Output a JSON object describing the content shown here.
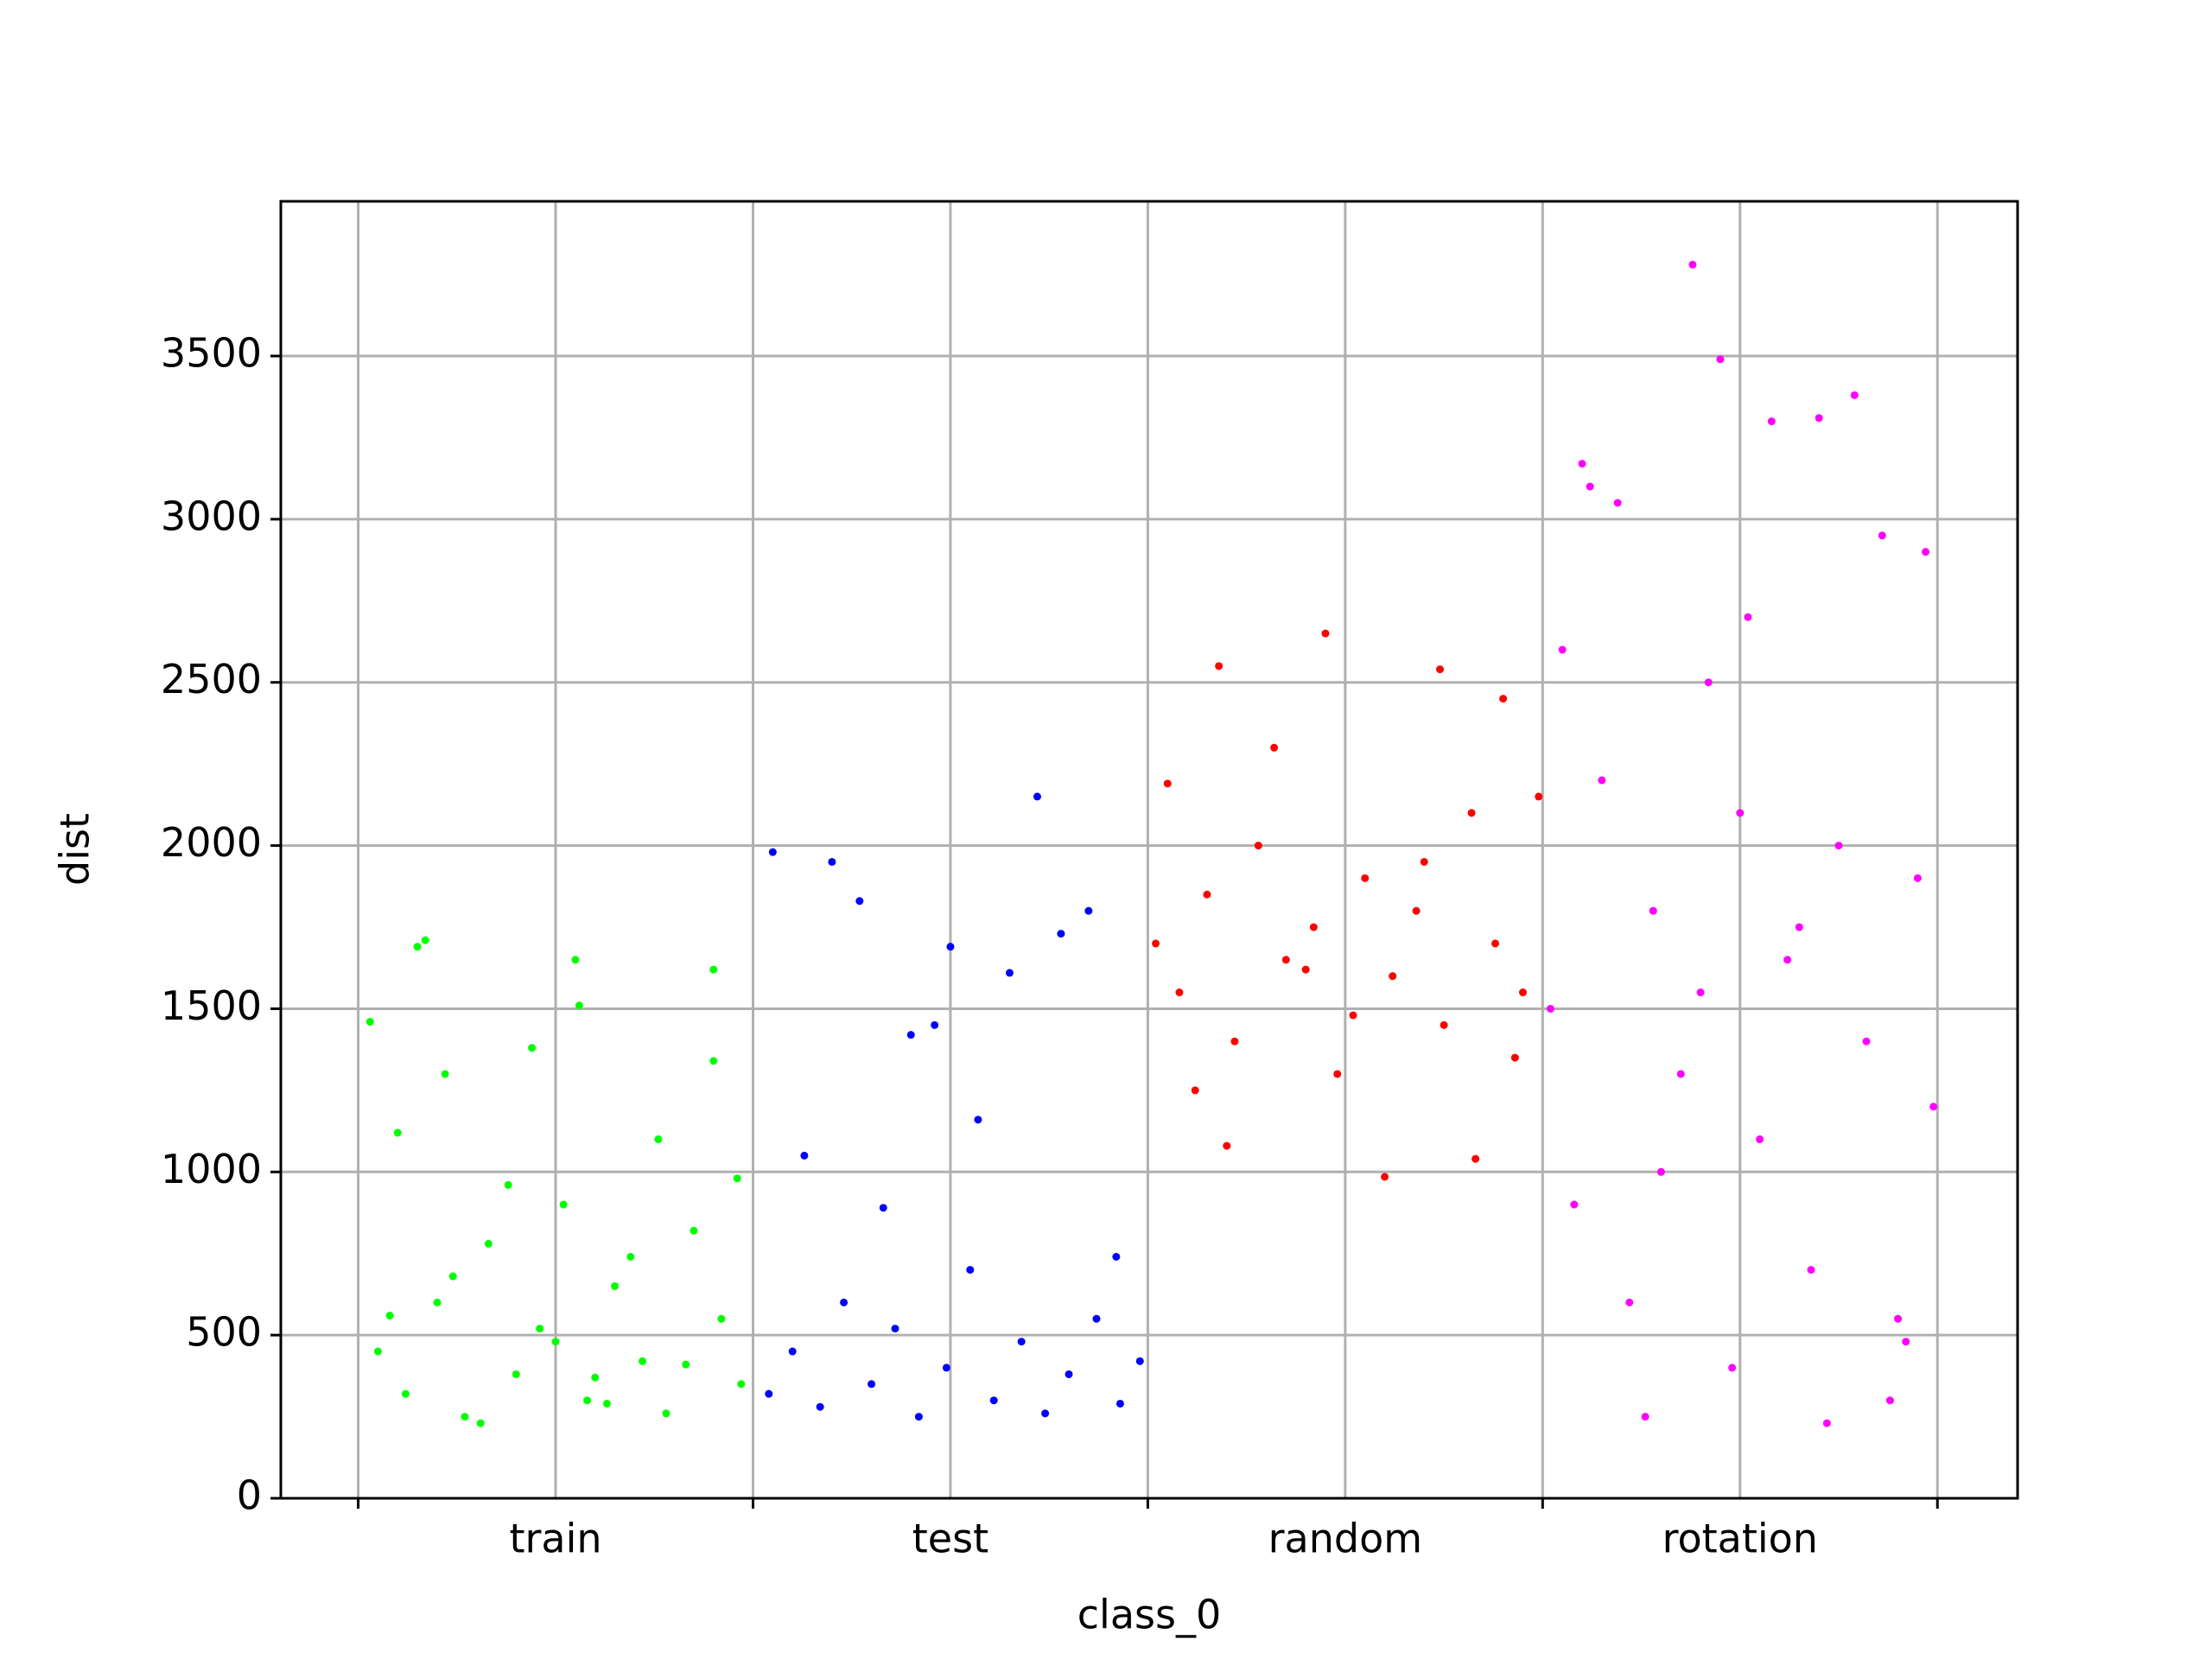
{
  "chart_data": {
    "type": "scatter",
    "xlabel": "class_0",
    "ylabel": "dist",
    "xlim": [
      -0.196,
      4.203
    ],
    "ylim": [
      0,
      3974
    ],
    "xticks": [
      {
        "value": 0.5,
        "label": "train"
      },
      {
        "value": 1.5,
        "label": "test"
      },
      {
        "value": 2.5,
        "label": "random"
      },
      {
        "value": 3.5,
        "label": "rotation"
      }
    ],
    "xtick_marks": [
      0,
      1,
      2,
      3,
      4
    ],
    "xgrid": [
      0,
      0.5,
      1,
      1.5,
      2,
      2.5,
      3,
      3.5,
      4
    ],
    "yticks": [
      0,
      500,
      1000,
      1500,
      2000,
      2500,
      3000,
      3500
    ],
    "grid": true,
    "series": [
      {
        "color": "#00ff00",
        "x": [
          0.05,
          0.12,
          0.2,
          0.27,
          0.33,
          0.4,
          0.46,
          0.52,
          0.58,
          0.65,
          0.72,
          0.78,
          0.85,
          0.92,
          0.97,
          0.03,
          0.1,
          0.17,
          0.24,
          0.31,
          0.38,
          0.44,
          0.5,
          0.56,
          0.63,
          0.69,
          0.76,
          0.83,
          0.9,
          0.96,
          0.08,
          0.15,
          0.22,
          0.6,
          0.55,
          0.9
        ],
        "values": [
          450,
          320,
          600,
          250,
          780,
          380,
          520,
          900,
          300,
          650,
          420,
          260,
          820,
          550,
          350,
          1460,
          1120,
          1710,
          680,
          230,
          960,
          1380,
          480,
          1510,
          290,
          740,
          1100,
          410,
          1620,
          980,
          560,
          1690,
          1300,
          370,
          1650,
          1340
        ]
      },
      {
        "color": "#0000ff",
        "x": [
          1.04,
          1.1,
          1.17,
          1.23,
          1.3,
          1.36,
          1.42,
          1.49,
          1.55,
          1.61,
          1.68,
          1.74,
          1.8,
          1.87,
          1.93,
          1.98,
          1.05,
          1.2,
          1.27,
          1.4,
          1.5,
          1.57,
          1.65,
          1.72,
          1.85,
          1.92,
          1.13,
          1.33,
          1.46,
          1.78
        ],
        "values": [
          320,
          450,
          280,
          600,
          350,
          520,
          250,
          400,
          700,
          300,
          480,
          260,
          380,
          550,
          290,
          420,
          1980,
          1950,
          1830,
          1420,
          1690,
          1160,
          1610,
          2150,
          1800,
          740,
          1050,
          890,
          1450,
          1730
        ]
      },
      {
        "color": "#ff0000",
        "x": [
          2.02,
          2.08,
          2.15,
          2.22,
          2.28,
          2.35,
          2.42,
          2.48,
          2.55,
          2.62,
          2.68,
          2.75,
          2.82,
          2.88,
          2.95,
          2.99,
          2.05,
          2.2,
          2.45,
          2.6,
          2.74,
          2.9,
          2.12,
          2.32,
          2.52,
          2.7,
          2.93,
          2.4,
          2.18,
          2.83
        ],
        "values": [
          1700,
          1550,
          1850,
          1400,
          2000,
          1650,
          1750,
          1300,
          1900,
          1600,
          1800,
          1450,
          2100,
          1700,
          1550,
          2150,
          2190,
          1080,
          2650,
          985,
          2540,
          2450,
          1250,
          2300,
          1480,
          1950,
          1350,
          1620,
          2550,
          1040
        ]
      },
      {
        "color": "#ff00ff",
        "x": [
          3.02,
          3.08,
          3.15,
          3.22,
          3.28,
          3.35,
          3.42,
          3.48,
          3.55,
          3.62,
          3.68,
          3.75,
          3.82,
          3.88,
          3.95,
          3.99,
          3.05,
          3.12,
          3.19,
          3.26,
          3.38,
          3.45,
          3.52,
          3.58,
          3.65,
          3.72,
          3.79,
          3.86,
          3.92,
          3.97,
          3.1,
          3.3,
          3.5,
          3.7,
          3.9,
          3.4
        ],
        "values": [
          1500,
          900,
          2200,
          600,
          1800,
          1300,
          2500,
          400,
          1100,
          1650,
          700,
          2000,
          1400,
          300,
          1900,
          1200,
          2600,
          3100,
          3050,
          250,
          3780,
          3490,
          2700,
          3300,
          1750,
          230,
          3380,
          2950,
          480,
          2900,
          3170,
          1000,
          2100,
          3310,
          550,
          1550
        ]
      }
    ]
  }
}
